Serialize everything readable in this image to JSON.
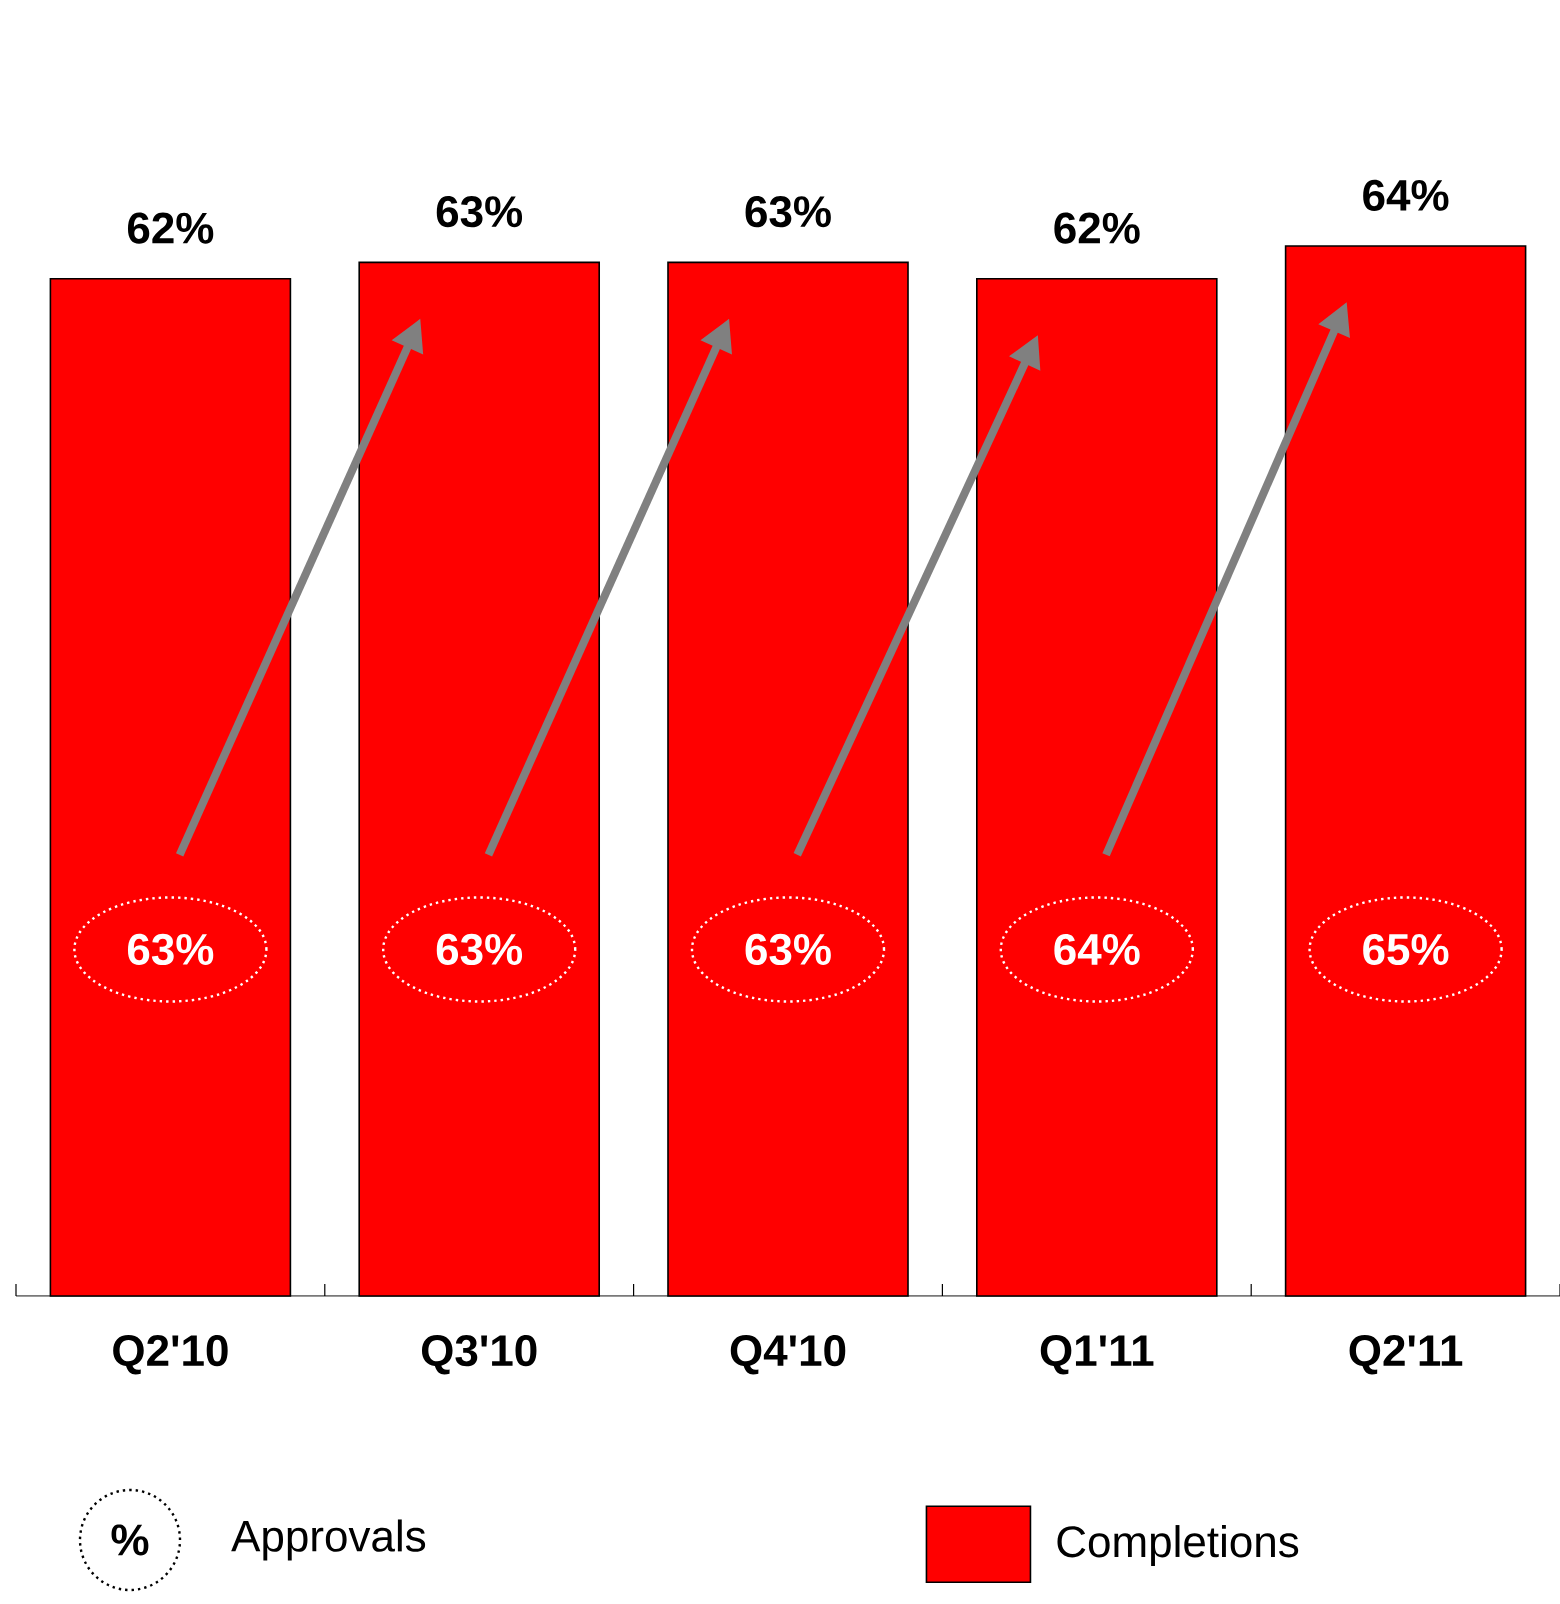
{
  "chart_data": {
    "type": "bar",
    "categories": [
      "Q2'10",
      "Q3'10",
      "Q4'10",
      "Q1'11",
      "Q2'11"
    ],
    "series": [
      {
        "name": "Completions",
        "color": "#ff0000",
        "values": [
          62,
          63,
          63,
          62,
          64
        ],
        "value_labels": [
          "62%",
          "63%",
          "63%",
          "62%",
          "64%"
        ]
      }
    ],
    "annotations": [
      "%",
      "Approvals",
      "63%",
      "63%",
      "63%",
      "64%",
      "65%"
    ],
    "legend": "bottom"
  }
}
